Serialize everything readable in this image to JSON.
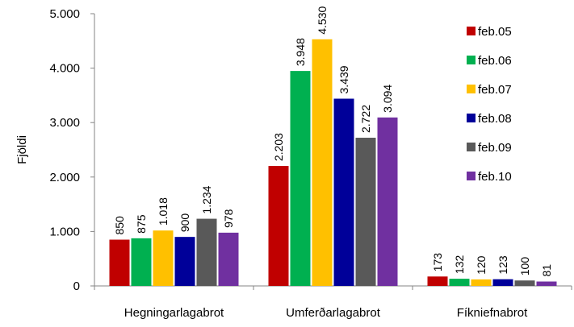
{
  "chart_data": {
    "type": "bar",
    "title": "",
    "xlabel": "",
    "ylabel": "Fjöldi",
    "ylim": [
      0,
      5000
    ],
    "yticks": [
      0,
      1000,
      2000,
      3000,
      4000,
      5000
    ],
    "ytick_labels": [
      "0",
      "1.000",
      "2.000",
      "3.000",
      "4.000",
      "5.000"
    ],
    "categories": [
      "Hegningarlagabrot",
      "Umferðarlagabrot",
      "Fíkniefnabrot"
    ],
    "series": [
      {
        "name": "feb.05",
        "color": "#C00000",
        "values": [
          850,
          2203,
          173
        ],
        "labels": [
          "850",
          "2.203",
          "173"
        ]
      },
      {
        "name": "feb.06",
        "color": "#00B050",
        "values": [
          875,
          3948,
          132
        ],
        "labels": [
          "875",
          "3.948",
          "132"
        ]
      },
      {
        "name": "feb.07",
        "color": "#FFC000",
        "values": [
          1018,
          4530,
          120
        ],
        "labels": [
          "1.018",
          "4.530",
          "120"
        ]
      },
      {
        "name": "feb.08",
        "color": "#000099",
        "values": [
          900,
          3439,
          123
        ],
        "labels": [
          "900",
          "3.439",
          "123"
        ]
      },
      {
        "name": "feb.09",
        "color": "#595959",
        "values": [
          1234,
          2722,
          100
        ],
        "labels": [
          "1.234",
          "2.722",
          "100"
        ]
      },
      {
        "name": "feb.10",
        "color": "#7030A0",
        "values": [
          978,
          3094,
          81
        ],
        "labels": [
          "978",
          "3.094",
          "81"
        ]
      }
    ],
    "grid": false,
    "legend": "right",
    "data_labels": "rotated-vertical"
  }
}
